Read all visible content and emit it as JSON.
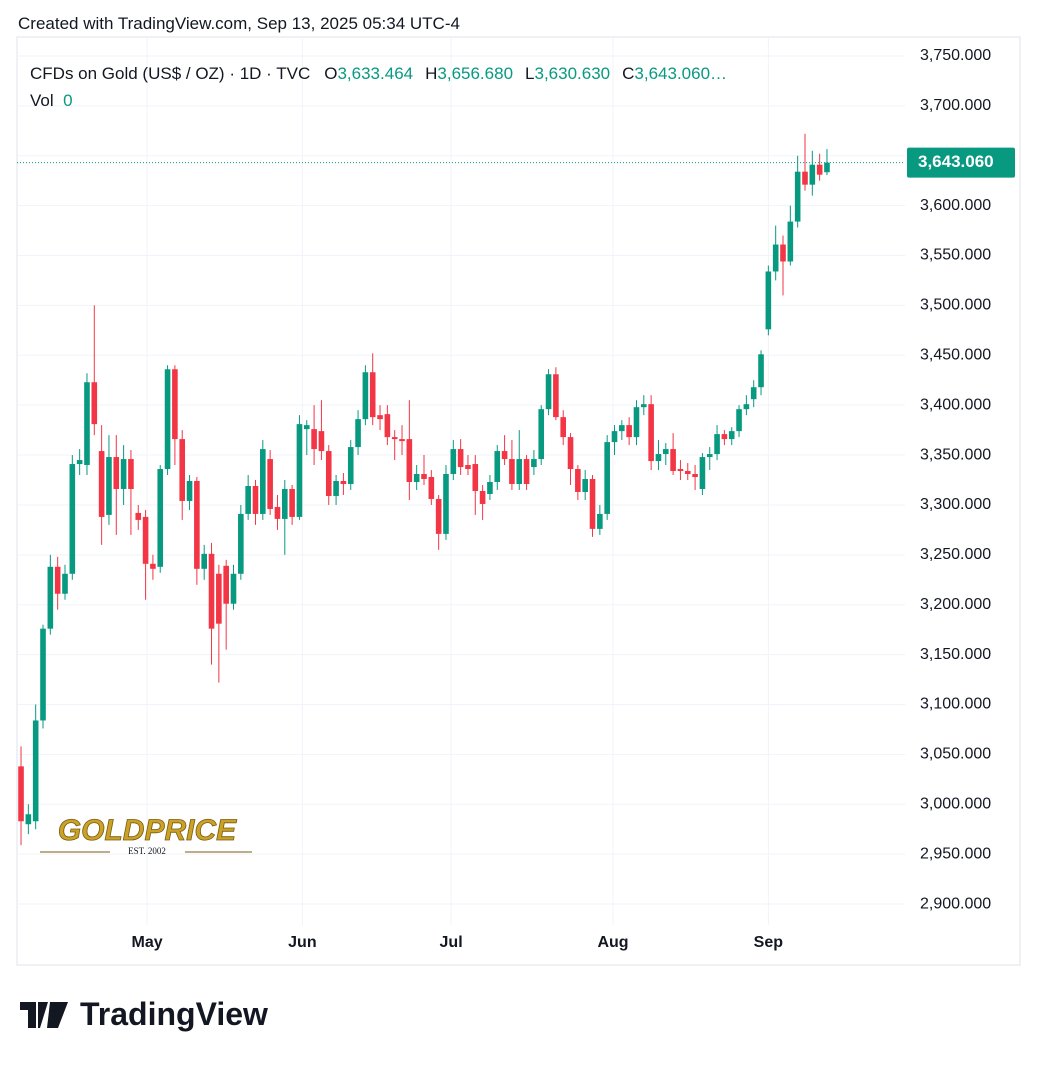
{
  "header": {
    "created": "Created with TradingView.com, Sep 13, 2025 05:34 UTC-4"
  },
  "footer": {
    "brand": "TradingView"
  },
  "watermark": {
    "name": "GOLDPRICE",
    "sub": "EST. 2002"
  },
  "chart_data": {
    "type": "candlestick",
    "symbol": "CFDs on Gold (US$ / OZ) · 1D · TVC",
    "ohlc_legend": [
      {
        "key": "O",
        "value": 3633.464,
        "label": "3,633.464"
      },
      {
        "key": "H",
        "value": 3656.68,
        "label": "3,656.680"
      },
      {
        "key": "L",
        "value": 3630.63,
        "label": "3,630.630"
      },
      {
        "key": "C",
        "value": 3643.06,
        "label": "3,643.060…"
      }
    ],
    "volume_legend": {
      "key": "Vol",
      "value": 0
    },
    "up_color": "#089981",
    "down_color": "#f23645",
    "last_price": {
      "value": 3643.06,
      "label": "3,643.060"
    },
    "open": [
      3038,
      2980,
      2983,
      3084,
      3176,
      3238,
      3211,
      3231,
      3341,
      3340,
      3423,
      3354,
      3290,
      3348,
      3316,
      3346,
      3292,
      3288,
      3241,
      3238,
      3336,
      3436,
      3366,
      3304,
      3324,
      3236,
      3251,
      3231,
      3239,
      3201,
      3231,
      3291,
      3319,
      3291,
      3346,
      3298,
      3286,
      3316,
      3288,
      3376,
      3376,
      3374,
      3354,
      3309,
      3324,
      3321,
      3358,
      3386,
      3433,
      3390,
      3391,
      3368,
      3366,
      3366,
      3323,
      3331,
      3328,
      3306,
      3271,
      3331,
      3356,
      3340,
      3341,
      3314,
      3311,
      3323,
      3354,
      3346,
      3321,
      3346,
      3338,
      3346,
      3396,
      3431,
      3388,
      3368,
      3336,
      3313,
      3326,
      3276,
      3291,
      3363,
      3374,
      3380,
      3368,
      3398,
      3401,
      3344,
      3351,
      3356,
      3336,
      3334,
      3331,
      3316,
      3348,
      3351,
      3371,
      3366,
      3374,
      3396,
      3406,
      3418,
      3476,
      3534,
      3561,
      3544,
      3584,
      3634,
      3621,
      3641,
      3633.464
    ],
    "high": [
      3058,
      3000,
      3100,
      3180,
      3250,
      3248,
      3240,
      3350,
      3356,
      3432,
      3500,
      3380,
      3370,
      3370,
      3360,
      3355,
      3300,
      3295,
      3250,
      3340,
      3440,
      3440,
      3375,
      3330,
      3328,
      3260,
      3262,
      3240,
      3245,
      3240,
      3300,
      3330,
      3325,
      3365,
      3355,
      3310,
      3325,
      3320,
      3390,
      3385,
      3400,
      3405,
      3360,
      3330,
      3332,
      3365,
      3395,
      3440,
      3452,
      3400,
      3400,
      3375,
      3380,
      3405,
      3340,
      3350,
      3335,
      3310,
      3340,
      3365,
      3366,
      3350,
      3350,
      3320,
      3330,
      3360,
      3370,
      3365,
      3375,
      3350,
      3355,
      3400,
      3436,
      3438,
      3395,
      3372,
      3340,
      3335,
      3330,
      3300,
      3370,
      3380,
      3385,
      3388,
      3405,
      3410,
      3410,
      3365,
      3362,
      3372,
      3345,
      3342,
      3340,
      3352,
      3358,
      3380,
      3375,
      3378,
      3400,
      3410,
      3425,
      3455,
      3540,
      3580,
      3570,
      3600,
      3650,
      3672,
      3655,
      3652,
      3656.68
    ],
    "low": [
      2959,
      2970,
      2975,
      3076,
      3170,
      3195,
      3205,
      3225,
      3330,
      3330,
      3370,
      3260,
      3280,
      3270,
      3300,
      3270,
      3275,
      3205,
      3225,
      3232,
      3330,
      3340,
      3285,
      3295,
      3220,
      3225,
      3140,
      3122,
      3155,
      3195,
      3225,
      3285,
      3280,
      3285,
      3290,
      3275,
      3250,
      3280,
      3285,
      3350,
      3340,
      3345,
      3300,
      3300,
      3310,
      3315,
      3350,
      3380,
      3380,
      3375,
      3360,
      3345,
      3350,
      3305,
      3315,
      3320,
      3300,
      3255,
      3265,
      3325,
      3330,
      3330,
      3290,
      3285,
      3305,
      3315,
      3340,
      3315,
      3315,
      3315,
      3330,
      3340,
      3390,
      3385,
      3360,
      3320,
      3305,
      3305,
      3268,
      3270,
      3285,
      3350,
      3365,
      3360,
      3360,
      3390,
      3335,
      3335,
      3340,
      3330,
      3325,
      3325,
      3315,
      3310,
      3335,
      3345,
      3360,
      3360,
      3368,
      3390,
      3398,
      3410,
      3470,
      3525,
      3510,
      3540,
      3578,
      3615,
      3610,
      3625,
      3630.63
    ],
    "close": [
      2983,
      2990,
      3084,
      3176,
      3238,
      3211,
      3231,
      3341,
      3345,
      3423,
      3381,
      3288,
      3348,
      3316,
      3346,
      3316,
      3285,
      3241,
      3236,
      3336,
      3436,
      3366,
      3304,
      3324,
      3236,
      3251,
      3176,
      3181,
      3201,
      3231,
      3291,
      3319,
      3291,
      3356,
      3296,
      3286,
      3316,
      3288,
      3381,
      3380,
      3356,
      3354,
      3309,
      3324,
      3321,
      3358,
      3386,
      3433,
      3388,
      3386,
      3368,
      3366,
      3364,
      3323,
      3331,
      3326,
      3306,
      3271,
      3331,
      3356,
      3338,
      3336,
      3314,
      3301,
      3323,
      3354,
      3346,
      3321,
      3346,
      3321,
      3346,
      3396,
      3431,
      3388,
      3368,
      3336,
      3313,
      3326,
      3276,
      3291,
      3363,
      3374,
      3380,
      3368,
      3398,
      3401,
      3344,
      3351,
      3356,
      3334,
      3334,
      3331,
      3328,
      3348,
      3351,
      3371,
      3366,
      3374,
      3396,
      3401,
      3418,
      3451,
      3534,
      3561,
      3544,
      3584,
      3634,
      3621,
      3641,
      3631,
      3643.06
    ],
    "xlim": [
      -0.55,
      120.65
    ],
    "xticks": [
      {
        "value": 17.2,
        "label": "May"
      },
      {
        "value": 38.4,
        "label": "Jun"
      },
      {
        "value": 58.7,
        "label": "Jul"
      },
      {
        "value": 80.8,
        "label": "Aug"
      },
      {
        "value": 102,
        "label": "Sep"
      }
    ],
    "ylim": [
      2879,
      3769
    ],
    "yticks": [
      {
        "value": 2900,
        "label": "2,900.000"
      },
      {
        "value": 2950,
        "label": "2,950.000"
      },
      {
        "value": 3000,
        "label": "3,000.000"
      },
      {
        "value": 3050,
        "label": "3,050.000"
      },
      {
        "value": 3100,
        "label": "3,100.000"
      },
      {
        "value": 3150,
        "label": "3,150.000"
      },
      {
        "value": 3200,
        "label": "3,200.000"
      },
      {
        "value": 3250,
        "label": "3,250.000"
      },
      {
        "value": 3300,
        "label": "3,300.000"
      },
      {
        "value": 3350,
        "label": "3,350.000"
      },
      {
        "value": 3400,
        "label": "3,400.000"
      },
      {
        "value": 3450,
        "label": "3,450.000"
      },
      {
        "value": 3500,
        "label": "3,500.000"
      },
      {
        "value": 3550,
        "label": "3,550.000"
      },
      {
        "value": 3600,
        "label": "3,600.000"
      },
      {
        "value": 3650,
        "label": "3,650.000"
      },
      {
        "value": 3700,
        "label": "3,700.000"
      },
      {
        "value": 3750,
        "label": "3,750.000"
      }
    ],
    "grid": true
  }
}
